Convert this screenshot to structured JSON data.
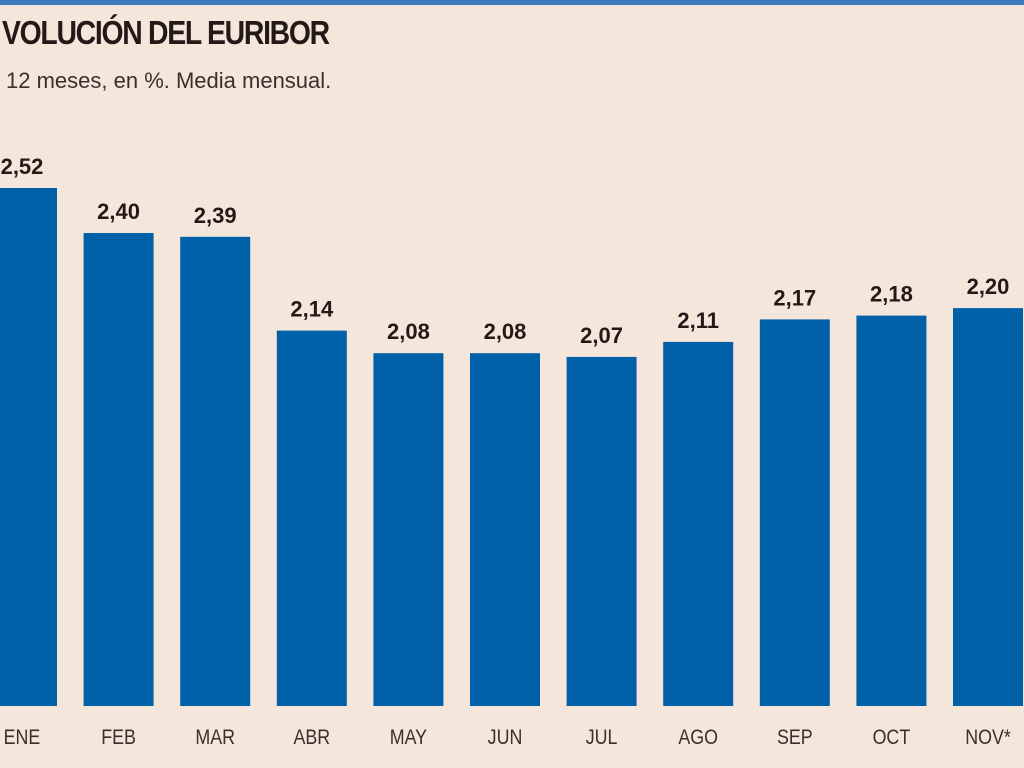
{
  "header": {
    "title": "VOLUCIÓN DEL EURIBOR",
    "subtitle": "12 meses, en %. Media mensual."
  },
  "colors": {
    "background": "#f5e6dc",
    "bar": "#0060a8",
    "accent_rule": "#3d7bc0",
    "text": "#231a17"
  },
  "chart_data": {
    "type": "bar",
    "title": "VOLUCIÓN DEL EURIBOR",
    "subtitle": "12 meses, en %. Media mensual.",
    "xlabel": "",
    "ylabel": "",
    "categories": [
      "ENE",
      "FEB",
      "MAR",
      "ABR",
      "MAY",
      "JUN",
      "JUL",
      "AGO",
      "SEP",
      "OCT",
      "NOV*"
    ],
    "values": [
      2.52,
      2.4,
      2.39,
      2.14,
      2.08,
      2.08,
      2.07,
      2.11,
      2.17,
      2.18,
      2.2
    ],
    "value_labels": [
      "2,52",
      "2,40",
      "2,39",
      "2,14",
      "2,08",
      "2,08",
      "2,07",
      "2,11",
      "2,17",
      "2,18",
      "2,20"
    ],
    "ylim": [
      1.14,
      2.52
    ],
    "grid": false,
    "legend": "none",
    "data_labels": true
  }
}
